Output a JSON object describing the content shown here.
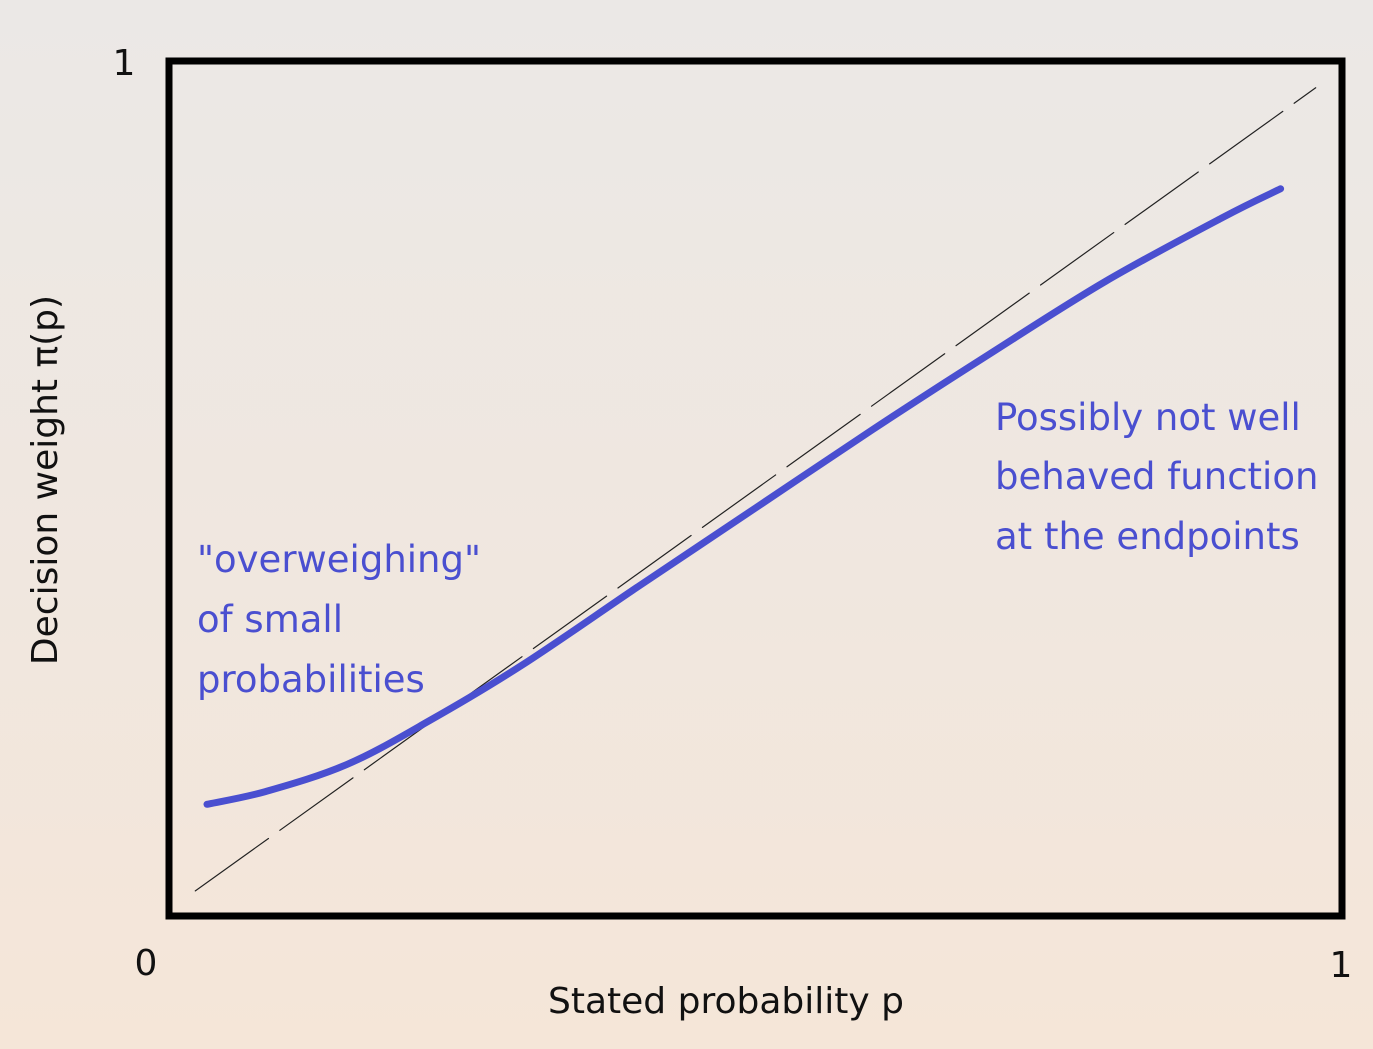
{
  "chart_data": {
    "type": "line",
    "title": "",
    "xlabel": "Stated probability p",
    "ylabel": "Decision weight π(p)",
    "xlim": [
      0,
      1
    ],
    "ylim": [
      0,
      1
    ],
    "x_ticks": [
      {
        "value": 0,
        "label": "0"
      },
      {
        "value": 1,
        "label": "1"
      }
    ],
    "y_ticks": [
      {
        "value": 1,
        "label": "1"
      }
    ],
    "grid": false,
    "series": [
      {
        "style": "dashed",
        "color": "#222222",
        "x": [
          0.02,
          0.98
        ],
        "y": [
          0.026,
          0.972
        ]
      },
      {
        "style": "solid",
        "color": "#4a4fd0",
        "x": [
          0.03,
          0.08,
          0.15,
          0.22,
          0.3,
          0.4,
          0.5,
          0.6,
          0.7,
          0.8,
          0.9,
          0.95
        ],
        "y": [
          0.128,
          0.143,
          0.175,
          0.226,
          0.292,
          0.385,
          0.477,
          0.569,
          0.658,
          0.744,
          0.819,
          0.853
        ]
      }
    ],
    "annotations": [
      {
        "lines": [
          "\"overweighing\"",
          "of small",
          "probabilities"
        ]
      },
      {
        "lines": [
          "Possibly not well",
          "behaved function",
          "at the endpoints"
        ]
      }
    ]
  }
}
